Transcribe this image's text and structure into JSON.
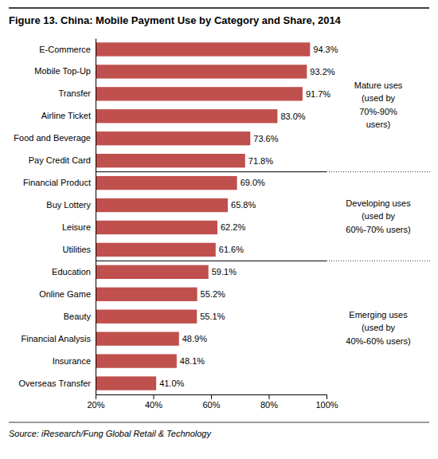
{
  "chart_data": {
    "type": "bar",
    "orientation": "horizontal",
    "title": "Figure 13. China: Mobile Payment Use by Category and Share, 2014",
    "source": "Source: iResearch/Fung Global Retail & Technology",
    "categories": [
      "E-Commerce",
      "Mobile Top-Up",
      "Transfer",
      "Airline Ticket",
      "Food and Beverage",
      "Pay Credit Card",
      "Financial Product",
      "Buy Lottery",
      "Leisure",
      "Utilities",
      "Education",
      "Online Game",
      "Beauty",
      "Financial Analysis",
      "Insurance",
      "Overseas Transfer"
    ],
    "values": [
      94.3,
      93.2,
      91.7,
      83.0,
      73.6,
      71.8,
      69.0,
      65.8,
      62.2,
      61.6,
      59.1,
      55.2,
      55.1,
      48.9,
      48.1,
      41.0
    ],
    "value_labels": [
      "94.3%",
      "93.2%",
      "91.7%",
      "83.0%",
      "73.6%",
      "71.8%",
      "69.0%",
      "65.8%",
      "62.2%",
      "61.6%",
      "59.1%",
      "55.2%",
      "55.1%",
      "48.9%",
      "48.1%",
      "41.0%"
    ],
    "data_labels": true,
    "color": "#c0504d",
    "xlim": [
      20,
      100
    ],
    "xticks": [
      {
        "value": 20,
        "label": "20%"
      },
      {
        "value": 40,
        "label": "40%"
      },
      {
        "value": 60,
        "label": "60%"
      },
      {
        "value": 80,
        "label": "80%"
      },
      {
        "value": 100,
        "label": "100%"
      }
    ],
    "grid": false,
    "annotations": [
      {
        "text": "Mature uses\n(used by\n70%-90%\nusers)",
        "from": "E-Commerce",
        "to": "Pay Credit Card"
      },
      {
        "text": "Developing uses\n(used by\n60%-70% users)",
        "from": "Financial Product",
        "to": "Utilities"
      },
      {
        "text": "Emerging uses\n(used by\n40%-60% users)",
        "from": "Education",
        "to": "Overseas Transfer"
      }
    ]
  }
}
